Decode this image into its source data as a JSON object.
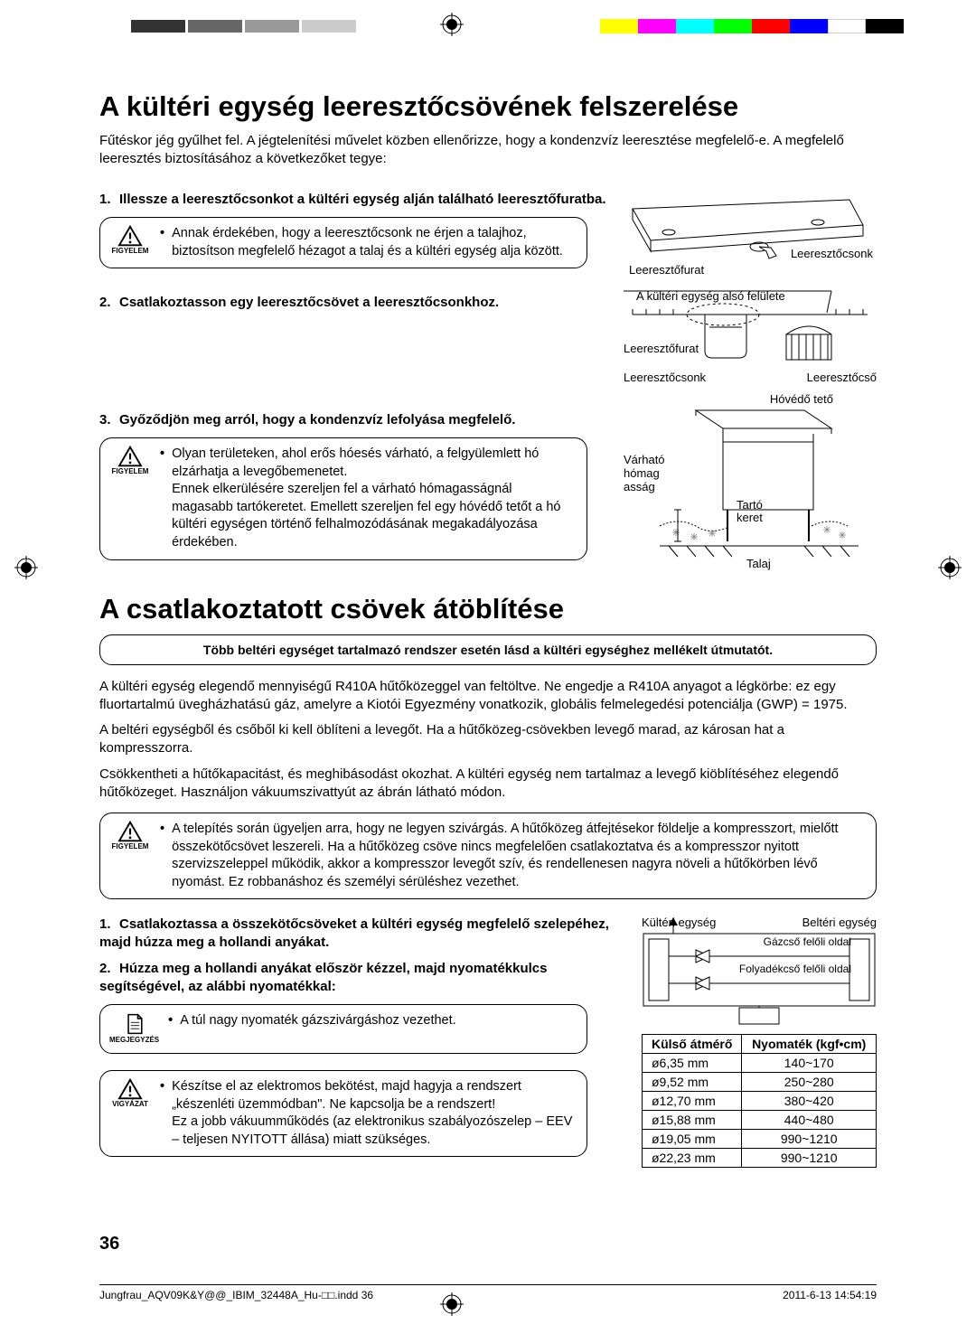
{
  "pageNumber": "36",
  "footer": {
    "file": "Jungfrau_AQV09K&Y@@_IBIM_32448A_Hu-□□.indd   36",
    "timestamp": "2011-6-13   14:54:19"
  },
  "section1": {
    "title": "A kültéri egység leeresztőcsövének felszerelése",
    "intro": "Fűtéskor jég gyűlhet fel. A jégtelenítési művelet közben ellenőrizze, hogy a kondenzvíz leeresztése megfelelő-e. A megfelelő leeresztés biztosításához a következőket tegye:",
    "step1": "Illessze a leeresztőcsonkot a kültéri egység alján található leeresztőfuratba.",
    "callout1": "Annak érdekében, hogy a leeresztőcsonk ne érjen a talajhoz, biztosítson megfelelő hézagot a talaj és a kültéri egység alja között.",
    "step2": "Csatlakoztasson egy leeresztőcsövet a leeresztőcsonkhoz.",
    "step3": "Győződjön meg arról, hogy a kondenzvíz lefolyása megfelelő.",
    "callout3": "Olyan területeken, ahol erős hóesés várható, a felgyülemlett hó elzárhatja a levegőbemenetet.\nEnnek elkerülésére szereljen fel a várható hómagasságnál magasabb tartókeretet. Emellett szereljen fel egy hóvédő tetőt a hó kültéri egységen történő felhalmozódásának megakadályozása érdekében.",
    "labels": {
      "figyelem": "FIGYELEM",
      "leeresztofurat": "Leeresztőfurat",
      "leeresztocsonk": "Leeresztőcsonk",
      "alsoFelulet": "A kültéri egység alsó felülete",
      "leeresztocso": "Leeresztőcső",
      "hovedo": "Hóvédő tető",
      "varhato": "Várható hómag asság",
      "tarto": "Tartó keret",
      "talaj": "Talaj"
    }
  },
  "section2": {
    "title": "A csatlakoztatott csövek átöblítése",
    "boxedNote": "Több beltéri egységet tartalmazó rendszer esetén lásd a kültéri egységhez mellékelt útmutatót.",
    "para1": "A kültéri egység elegendő mennyiségű R410A hűtőközeggel van feltöltve.  Ne engedje a R410A anyagot a légkörbe: ez egy fluortartalmú üvegházhatású gáz, amelyre a Kiotói Egyezmény vonatkozik, globális felmelegedési potenciálja (GWP) = 1975.",
    "para2": "A beltéri egységből és csőből ki kell öblíteni a levegőt. Ha a hűtőközeg-csövekben levegő marad, az károsan hat a kompresszorra.",
    "para3": "Csökkentheti a hűtőkapacitást, és meghibásodást okozhat. A kültéri egység nem tartalmaz a levegő kiöblítéséhez elegendő hűtőközeget. Használjon vákuumszivattyút az ábrán látható módon.",
    "callout1": "A telepítés során ügyeljen arra, hogy ne legyen szivárgás. A hűtőközeg átfejtésekor földelje a kompresszort, mielőtt összekötőcsövet leszereli. Ha a hűtőközeg csöve nincs megfelelően csatlakoztatva és a kompresszor nyitott szervizszeleppel működik, akkor a kompresszor levegőt szív, és rendellenesen nagyra növeli a hűtőkörben lévő nyomást. Ez robbanáshoz és személyi sérüléshez vezethet.",
    "step1": "Csatlakoztassa a összekötőcsöveket a kültéri egység megfelelő szelepéhez, majd húzza meg a hollandi anyákat.",
    "step2": "Húzza meg a hollandi anyákat először kézzel, majd nyomatékkulcs segítségével, az alábbi nyomatékkal:",
    "callout2": "A túl nagy nyomaték gázszivárgáshoz vezethet.",
    "callout3a": "Készítse el az elektromos bekötést, majd hagyja a rendszert „készenléti üzemmódban\". Ne kapcsolja be a rendszert!",
    "callout3b": "Ez a jobb vákuumműködés (az elektronikus szabályozószelep – EEV – teljesen NYITOTT állása) miatt szükséges.",
    "labels": {
      "figyelem": "FIGYELEM",
      "megjegyzes": "MEGJEGYZÉS",
      "vigyazat": "VIGYÁZAT",
      "kulteri": "Kültéri egység",
      "belteri": "Beltéri egység",
      "gazcso": "Gázcső felőli oldal",
      "folyadek": "Folyadékcső felőli oldal"
    },
    "table": {
      "head1": "Külső átmérő",
      "head2": "Nyomaték (kgf•cm)",
      "rows": [
        [
          "ø6,35 mm",
          "140~170"
        ],
        [
          "ø9,52 mm",
          "250~280"
        ],
        [
          "ø12,70 mm",
          "380~420"
        ],
        [
          "ø15,88 mm",
          "440~480"
        ],
        [
          "ø19,05 mm",
          "990~1210"
        ],
        [
          "ø22,23 mm",
          "990~1210"
        ]
      ]
    }
  }
}
